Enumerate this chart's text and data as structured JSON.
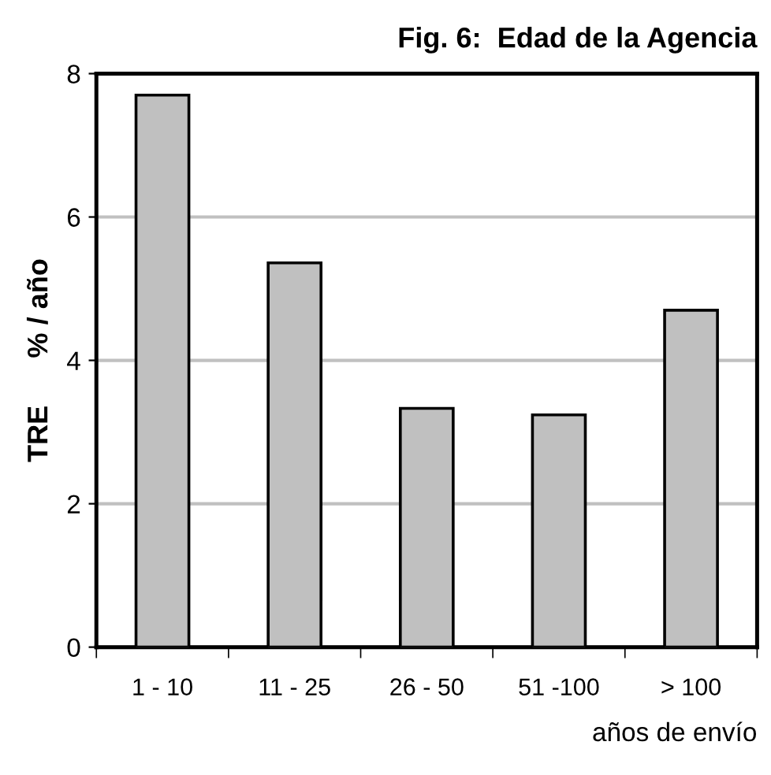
{
  "chart_data": {
    "type": "bar",
    "title": "Fig. 6:  Edad de la Agencia",
    "xlabel": "años de envío",
    "ylabel": "TRE      % / año",
    "categories": [
      "1 - 10",
      "11 - 25",
      "26 - 50",
      "51 -100",
      "> 100"
    ],
    "values": [
      7.7,
      5.36,
      3.33,
      3.24,
      4.7
    ],
    "color": "#c0c0c0",
    "ylim": [
      0,
      8
    ],
    "yticks": [
      0,
      2,
      4,
      6,
      8
    ],
    "grid": "y"
  }
}
